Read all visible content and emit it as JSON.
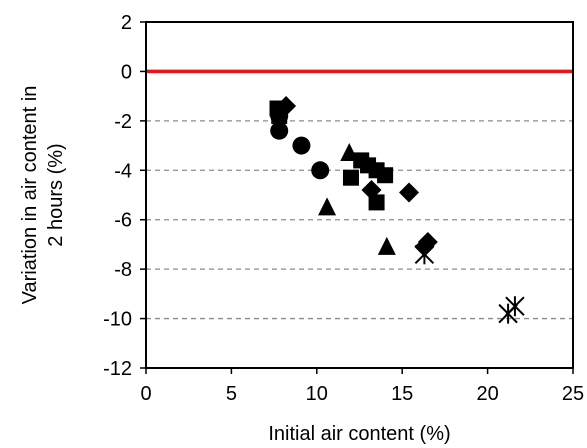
{
  "chart_data": {
    "type": "scatter",
    "xlabel": "Initial air content (%)",
    "ylabel_lines": [
      "Variation in air content in",
      "2 hours (%)"
    ],
    "xlim": [
      0,
      25
    ],
    "ylim": [
      -12,
      2
    ],
    "x_ticks": [
      0,
      5,
      10,
      15,
      20,
      25
    ],
    "y_ticks": [
      -12,
      -10,
      -8,
      -6,
      -4,
      -2,
      0,
      2
    ],
    "gridlines_y": [
      -10,
      -8,
      -6,
      -4,
      -2
    ],
    "grid": "horizontal dashed",
    "reference_line": {
      "y": 0,
      "color": "#e8141c"
    },
    "series": [
      {
        "marker": "circle",
        "points": [
          [
            7.8,
            -1.8
          ],
          [
            7.8,
            -2.4
          ],
          [
            9.1,
            -3.0
          ],
          [
            10.2,
            -4.0
          ]
        ]
      },
      {
        "marker": "square",
        "points": [
          [
            7.7,
            -1.5
          ],
          [
            7.8,
            -1.8
          ],
          [
            12.0,
            -4.3
          ],
          [
            12.6,
            -3.6
          ],
          [
            13.0,
            -3.8
          ],
          [
            13.5,
            -4.0
          ],
          [
            14.0,
            -4.2
          ],
          [
            13.5,
            -5.3
          ]
        ]
      },
      {
        "marker": "diamond",
        "points": [
          [
            8.2,
            -1.4
          ],
          [
            13.2,
            -4.8
          ],
          [
            15.4,
            -4.9
          ],
          [
            16.3,
            -7.1
          ],
          [
            16.5,
            -6.9
          ]
        ]
      },
      {
        "marker": "triangle",
        "points": [
          [
            11.9,
            -3.3
          ],
          [
            10.6,
            -5.5
          ],
          [
            14.1,
            -7.1
          ]
        ]
      },
      {
        "marker": "asterisk",
        "points": [
          [
            16.3,
            -7.4
          ],
          [
            21.2,
            -9.8
          ],
          [
            21.6,
            -9.5
          ]
        ]
      }
    ],
    "marker_color": "#000000"
  }
}
